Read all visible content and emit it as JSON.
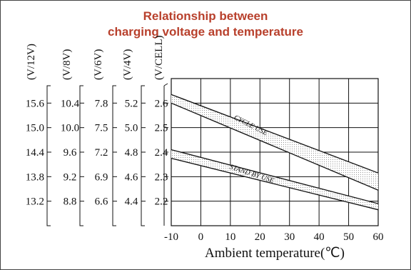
{
  "chart_data": {
    "type": "line",
    "title": "Relationship between",
    "subtitle": "charging voltage and temperature",
    "xlabel": "Ambient temperature(℃)",
    "x_ticks": [
      "-10",
      "0",
      "10",
      "20",
      "30",
      "40",
      "50",
      "60"
    ],
    "xlim": [
      -10,
      60
    ],
    "ylim": [
      2.1,
      2.7
    ],
    "grid": true,
    "y_axes": [
      {
        "unit": "(V/12V)",
        "ticks": [
          "15.6",
          "15.0",
          "14.4",
          "13.8",
          "13.2"
        ]
      },
      {
        "unit": "(V/8V)",
        "ticks": [
          "10.4",
          "10.0",
          "9.6",
          "9.2",
          "8.8"
        ]
      },
      {
        "unit": "(V/6V)",
        "ticks": [
          "7.8",
          "7.5",
          "7.2",
          "6.9",
          "6.6"
        ]
      },
      {
        "unit": "(V/4V)",
        "ticks": [
          "5.2",
          "5.0",
          "4.8",
          "4.6",
          "4.4"
        ]
      },
      {
        "unit": "(V/CELL)",
        "ticks": [
          "2.6",
          "2.5",
          "2.4",
          "2.3",
          "2.2"
        ]
      }
    ],
    "y_tick_values": [
      2.6,
      2.5,
      2.4,
      2.3,
      2.2
    ],
    "bands": [
      {
        "name": "CYCLE USE",
        "x": [
          -10,
          60
        ],
        "upper": [
          2.635,
          2.315
        ],
        "lower": [
          2.6,
          2.245
        ]
      },
      {
        "name": "STAND BY USE",
        "x": [
          -10,
          60
        ],
        "upper": [
          2.41,
          2.19
        ],
        "lower": [
          2.375,
          2.165
        ]
      }
    ],
    "colors": {
      "title": "#b8402c",
      "band_fill": "#dcdcdc",
      "line": "#111111"
    }
  }
}
